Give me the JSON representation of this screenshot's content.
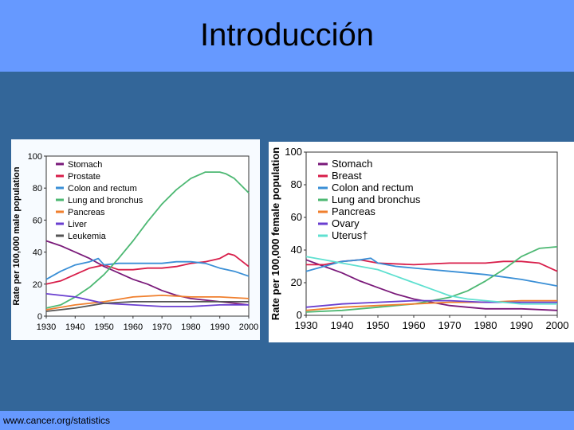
{
  "slide": {
    "title": "Introducción",
    "source": "www.cancer.org/statistics"
  },
  "chart_data": [
    {
      "type": "line",
      "ylabel": "Rate per 100,000 male population",
      "xlabel": "",
      "xlim": [
        1930,
        2000
      ],
      "ylim": [
        0,
        100
      ],
      "xticks": [
        "1930",
        "1940",
        "1950",
        "1960",
        "1970",
        "1980",
        "1990",
        "2000"
      ],
      "yticks": [
        "0",
        "20",
        "40",
        "60",
        "80",
        "100"
      ],
      "legend_position": "top-left",
      "series": [
        {
          "name": "Stomach",
          "color": "#7a1a7a",
          "x": [
            1930,
            1935,
            1940,
            1945,
            1950,
            1955,
            1960,
            1965,
            1970,
            1975,
            1980,
            1985,
            1990,
            1995,
            2000
          ],
          "y": [
            47,
            44,
            40,
            36,
            31,
            27,
            23,
            20,
            16,
            13,
            11,
            10,
            9,
            8,
            7
          ]
        },
        {
          "name": "Prostate",
          "color": "#d81e4a",
          "x": [
            1930,
            1935,
            1940,
            1945,
            1950,
            1955,
            1960,
            1965,
            1970,
            1975,
            1980,
            1985,
            1990,
            1993,
            1995,
            2000
          ],
          "y": [
            20,
            22,
            26,
            30,
            32,
            29,
            29,
            30,
            30,
            31,
            33,
            34,
            36,
            39,
            38,
            31
          ]
        },
        {
          "name": "Colon and rectum",
          "color": "#3a8fd6",
          "x": [
            1930,
            1935,
            1940,
            1945,
            1948,
            1950,
            1955,
            1960,
            1965,
            1970,
            1975,
            1980,
            1985,
            1990,
            1995,
            2000
          ],
          "y": [
            23,
            28,
            32,
            34,
            36,
            32,
            33,
            33,
            33,
            33,
            34,
            34,
            33,
            30,
            28,
            25
          ]
        },
        {
          "name": "Lung and bronchus",
          "color": "#4db873",
          "x": [
            1930,
            1935,
            1940,
            1945,
            1950,
            1955,
            1960,
            1965,
            1970,
            1975,
            1980,
            1985,
            1990,
            1992,
            1995,
            2000
          ],
          "y": [
            5,
            7,
            12,
            18,
            26,
            36,
            47,
            59,
            70,
            79,
            86,
            90,
            90,
            89,
            86,
            77
          ]
        },
        {
          "name": "Pancreas",
          "color": "#f07f2d",
          "x": [
            1930,
            1940,
            1950,
            1960,
            1970,
            1980,
            1990,
            2000
          ],
          "y": [
            4,
            7,
            9,
            12,
            13,
            12,
            12,
            11
          ]
        },
        {
          "name": "Liver",
          "color": "#6a3fd0",
          "x": [
            1930,
            1940,
            1950,
            1960,
            1970,
            1980,
            1990,
            2000
          ],
          "y": [
            14,
            12,
            8,
            7,
            6,
            6,
            7,
            7
          ]
        },
        {
          "name": "Leukemia",
          "color": "#555555",
          "x": [
            1930,
            1940,
            1950,
            1960,
            1970,
            1980,
            1990,
            2000
          ],
          "y": [
            3,
            5,
            8,
            9,
            9,
            9,
            9,
            9
          ]
        }
      ]
    },
    {
      "type": "line",
      "ylabel": "Rate per 100,000 female population",
      "xlabel": "",
      "xlim": [
        1930,
        2000
      ],
      "ylim": [
        0,
        100
      ],
      "xticks": [
        "1930",
        "1940",
        "1950",
        "1960",
        "1970",
        "1980",
        "1990",
        "2000"
      ],
      "yticks": [
        "0",
        "20",
        "40",
        "60",
        "80",
        "100"
      ],
      "legend_position": "top-left",
      "series": [
        {
          "name": "Stomach",
          "color": "#7a1a7a",
          "x": [
            1930,
            1935,
            1940,
            1945,
            1950,
            1955,
            1960,
            1965,
            1970,
            1975,
            1980,
            1990,
            2000
          ],
          "y": [
            34,
            30,
            26,
            21,
            17,
            13,
            10,
            8,
            6,
            5,
            4,
            4,
            3
          ]
        },
        {
          "name": "Breast",
          "color": "#d81e4a",
          "x": [
            1930,
            1935,
            1940,
            1945,
            1950,
            1960,
            1970,
            1980,
            1985,
            1990,
            1995,
            2000
          ],
          "y": [
            31,
            31,
            33,
            34,
            32,
            31,
            32,
            32,
            33,
            33,
            32,
            27
          ]
        },
        {
          "name": "Colon and rectum",
          "color": "#3a8fd6",
          "x": [
            1930,
            1935,
            1940,
            1945,
            1948,
            1950,
            1955,
            1960,
            1970,
            1980,
            1990,
            2000
          ],
          "y": [
            27,
            30,
            33,
            34,
            35,
            32,
            30,
            29,
            27,
            25,
            22,
            18
          ]
        },
        {
          "name": "Lung and bronchus",
          "color": "#4db873",
          "x": [
            1930,
            1940,
            1950,
            1960,
            1965,
            1970,
            1975,
            1980,
            1985,
            1990,
            1995,
            2000
          ],
          "y": [
            2,
            3,
            5,
            7,
            9,
            11,
            15,
            21,
            28,
            36,
            41,
            42
          ]
        },
        {
          "name": "Pancreas",
          "color": "#f07f2d",
          "x": [
            1930,
            1940,
            1950,
            1960,
            1970,
            1980,
            1990,
            2000
          ],
          "y": [
            3,
            5,
            6,
            7,
            8,
            8,
            9,
            9
          ]
        },
        {
          "name": "Ovary",
          "color": "#6a3fd0",
          "x": [
            1930,
            1940,
            1950,
            1960,
            1970,
            1980,
            1990,
            2000
          ],
          "y": [
            5,
            7,
            8,
            9,
            9,
            8,
            8,
            8
          ]
        },
        {
          "name": "Uterus†",
          "color": "#5fe0d0",
          "x": [
            1930,
            1935,
            1940,
            1945,
            1950,
            1955,
            1960,
            1965,
            1970,
            1975,
            1980,
            1990,
            2000
          ],
          "y": [
            36,
            34,
            32,
            30,
            28,
            24,
            20,
            16,
            12,
            10,
            9,
            7,
            7
          ]
        }
      ]
    }
  ]
}
